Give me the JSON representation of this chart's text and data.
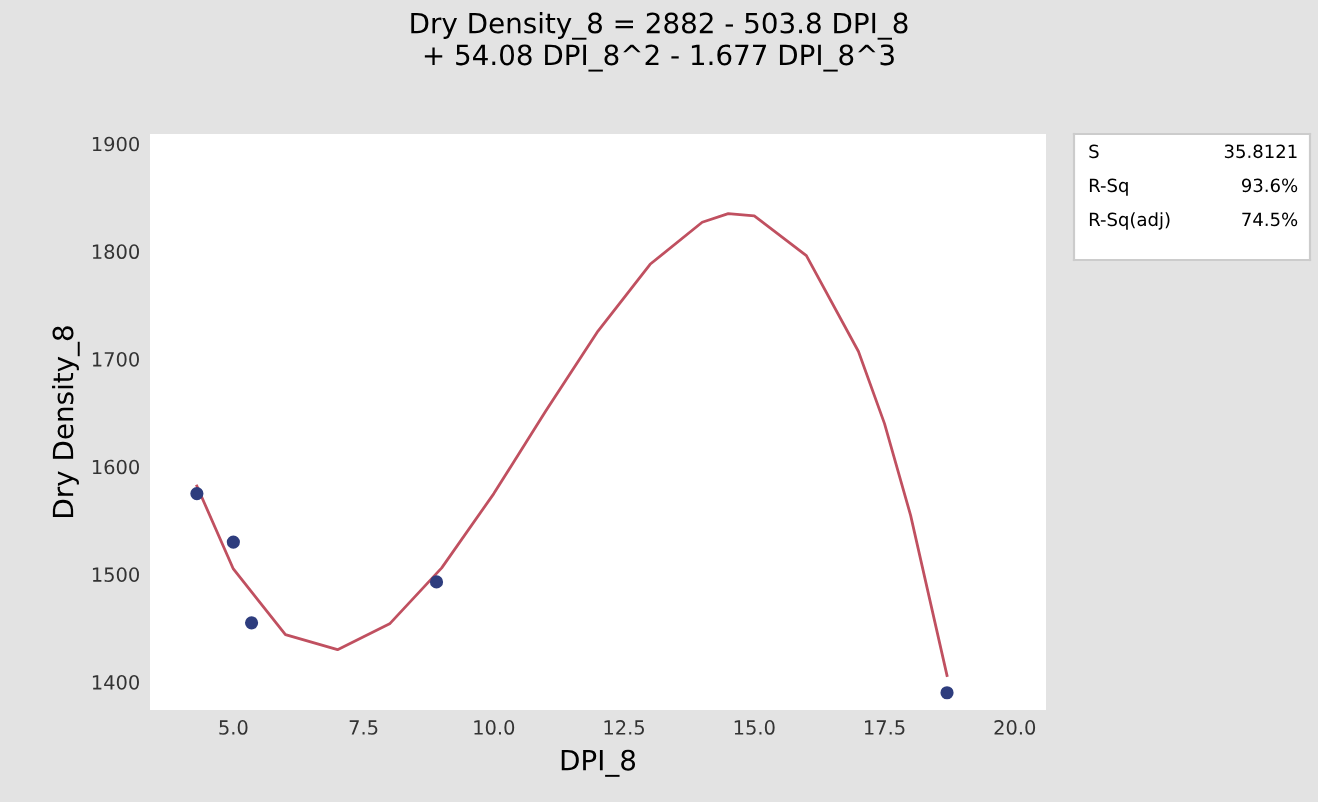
{
  "chart_data": {
    "type": "scatter",
    "title": "Dry Density_8 = 2882 - 503.8 DPI_8\n+ 54.08 DPI_8^2 - 1.677 DPI_8^3",
    "xlabel": "DPI_8",
    "ylabel": "Dry Density_8",
    "series": [
      {
        "color": "#2e3d7e",
        "marker": "circle",
        "x": [
          4.3,
          5.0,
          5.35,
          8.9,
          18.7
        ],
        "values": [
          1575,
          1530,
          1455,
          1493,
          1390
        ]
      },
      {
        "type": "line",
        "color": "#c05060",
        "marker": "none",
        "x": [
          4.3,
          5,
          6,
          7,
          8,
          9,
          10,
          11,
          12,
          13,
          14,
          14.5,
          15,
          16,
          17,
          17.5,
          18,
          18.7
        ],
        "values": [
          1582,
          1505,
          1444,
          1430,
          1454,
          1506,
          1575,
          1652,
          1726,
          1788,
          1827,
          1835,
          1833,
          1796,
          1707,
          1640,
          1555,
          1406
        ]
      }
    ],
    "xlim": [
      3.4,
      20.6
    ],
    "ylim": [
      1374,
      1909
    ],
    "xticks": [
      {
        "value": 5,
        "label": "5.0"
      },
      {
        "value": 7.5,
        "label": "7.5"
      },
      {
        "value": 10,
        "label": "10.0"
      },
      {
        "value": 12.5,
        "label": "12.5"
      },
      {
        "value": 15,
        "label": "15.0"
      },
      {
        "value": 17.5,
        "label": "17.5"
      },
      {
        "value": 20,
        "label": "20.0"
      }
    ],
    "yticks": [
      1400,
      1500,
      1600,
      1700,
      1800,
      1900
    ],
    "grid": false,
    "legend": false,
    "annotations": [
      "S",
      "35.8121",
      "R-Sq",
      "93.6%",
      "R-Sq(adj)",
      "74.5%"
    ]
  }
}
